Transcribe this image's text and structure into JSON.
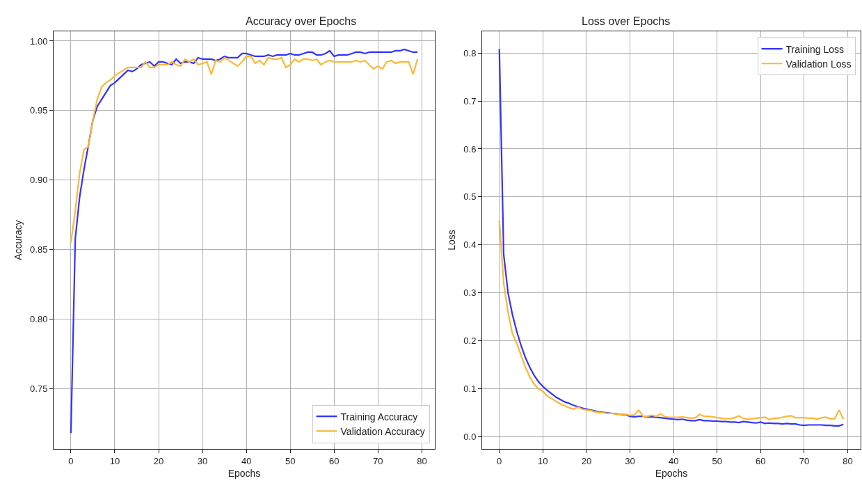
{
  "chart_data": [
    {
      "type": "line",
      "title": "Accuracy over Epochs",
      "xlabel": "Epochs",
      "ylabel": "Accuracy",
      "x": [
        0,
        1,
        2,
        3,
        4,
        5,
        6,
        7,
        8,
        9,
        10,
        11,
        12,
        13,
        14,
        15,
        16,
        17,
        18,
        19,
        20,
        21,
        22,
        23,
        24,
        25,
        26,
        27,
        28,
        29,
        30,
        31,
        32,
        33,
        34,
        35,
        36,
        37,
        38,
        39,
        40,
        41,
        42,
        43,
        44,
        45,
        46,
        47,
        48,
        49,
        50,
        51,
        52,
        53,
        54,
        55,
        56,
        57,
        58,
        59,
        60,
        61,
        62,
        63,
        64,
        65,
        66,
        67,
        68,
        69,
        70,
        71,
        72,
        73,
        74,
        75,
        76,
        77,
        78,
        79
      ],
      "series": [
        {
          "name": "Training Accuracy",
          "color": "#3333ff",
          "values": [
            0.718,
            0.858,
            0.888,
            0.908,
            0.925,
            0.943,
            0.953,
            0.958,
            0.963,
            0.968,
            0.97,
            0.973,
            0.976,
            0.979,
            0.978,
            0.98,
            0.983,
            0.984,
            0.985,
            0.982,
            0.985,
            0.985,
            0.984,
            0.983,
            0.987,
            0.984,
            0.985,
            0.985,
            0.984,
            0.988,
            0.987,
            0.987,
            0.987,
            0.986,
            0.987,
            0.989,
            0.988,
            0.988,
            0.988,
            0.991,
            0.991,
            0.99,
            0.989,
            0.989,
            0.989,
            0.99,
            0.989,
            0.99,
            0.99,
            0.99,
            0.991,
            0.99,
            0.99,
            0.991,
            0.992,
            0.992,
            0.99,
            0.99,
            0.991,
            0.993,
            0.989,
            0.99,
            0.99,
            0.99,
            0.991,
            0.992,
            0.992,
            0.991,
            0.992,
            0.992,
            0.992,
            0.992,
            0.992,
            0.992,
            0.993,
            0.993,
            0.994,
            0.993,
            0.992,
            0.992
          ]
        },
        {
          "name": "Validation Accuracy",
          "color": "#ffb733",
          "values": [
            0.855,
            0.878,
            0.905,
            0.922,
            0.924,
            0.943,
            0.958,
            0.967,
            0.97,
            0.972,
            0.975,
            0.977,
            0.979,
            0.981,
            0.981,
            0.981,
            0.981,
            0.985,
            0.981,
            0.981,
            0.983,
            0.983,
            0.983,
            0.985,
            0.983,
            0.982,
            0.987,
            0.985,
            0.987,
            0.983,
            0.984,
            0.985,
            0.976,
            0.986,
            0.985,
            0.988,
            0.986,
            0.984,
            0.982,
            0.985,
            0.989,
            0.989,
            0.984,
            0.986,
            0.983,
            0.988,
            0.987,
            0.987,
            0.988,
            0.981,
            0.983,
            0.987,
            0.985,
            0.987,
            0.987,
            0.986,
            0.987,
            0.983,
            0.985,
            0.986,
            0.985,
            0.985,
            0.985,
            0.985,
            0.985,
            0.986,
            0.985,
            0.986,
            0.983,
            0.98,
            0.982,
            0.98,
            0.985,
            0.986,
            0.984,
            0.985,
            0.985,
            0.985,
            0.976,
            0.987
          ]
        }
      ],
      "xlim": [
        -3.95,
        82.95
      ],
      "xticks": [
        0,
        10,
        20,
        30,
        40,
        50,
        60,
        70,
        80
      ],
      "ylim": [
        0.7066,
        1.007
      ],
      "yticks": [
        {
          "value": 0.75,
          "label": "0.75"
        },
        {
          "value": 0.8,
          "label": "0.80"
        },
        {
          "value": 0.85,
          "label": "0.85"
        },
        {
          "value": 0.9,
          "label": "0.90"
        },
        {
          "value": 0.95,
          "label": "0.95"
        },
        {
          "value": 1.0,
          "label": "1.00"
        }
      ],
      "grid": true,
      "legend": "bottom right",
      "line_style": "solid"
    },
    {
      "type": "line",
      "title": "Loss over Epochs",
      "xlabel": "Epochs",
      "ylabel": "Loss",
      "x": [
        0,
        1,
        2,
        3,
        4,
        5,
        6,
        7,
        8,
        9,
        10,
        11,
        12,
        13,
        14,
        15,
        16,
        17,
        18,
        19,
        20,
        21,
        22,
        23,
        24,
        25,
        26,
        27,
        28,
        29,
        30,
        31,
        32,
        33,
        34,
        35,
        36,
        37,
        38,
        39,
        40,
        41,
        42,
        43,
        44,
        45,
        46,
        47,
        48,
        49,
        50,
        51,
        52,
        53,
        54,
        55,
        56,
        57,
        58,
        59,
        60,
        61,
        62,
        63,
        64,
        65,
        66,
        67,
        68,
        69,
        70,
        71,
        72,
        73,
        74,
        75,
        76,
        77,
        78,
        79
      ],
      "series": [
        {
          "name": "Training Loss",
          "color": "#3333ff",
          "values": [
            0.808,
            0.38,
            0.3,
            0.255,
            0.22,
            0.19,
            0.165,
            0.145,
            0.128,
            0.115,
            0.105,
            0.097,
            0.09,
            0.083,
            0.078,
            0.073,
            0.07,
            0.066,
            0.063,
            0.06,
            0.058,
            0.056,
            0.054,
            0.052,
            0.051,
            0.05,
            0.049,
            0.048,
            0.047,
            0.046,
            0.043,
            0.042,
            0.043,
            0.043,
            0.042,
            0.042,
            0.041,
            0.04,
            0.039,
            0.038,
            0.037,
            0.036,
            0.037,
            0.035,
            0.034,
            0.034,
            0.036,
            0.034,
            0.034,
            0.033,
            0.033,
            0.032,
            0.032,
            0.031,
            0.031,
            0.03,
            0.032,
            0.031,
            0.03,
            0.029,
            0.031,
            0.028,
            0.029,
            0.028,
            0.028,
            0.027,
            0.028,
            0.027,
            0.027,
            0.025,
            0.024,
            0.025,
            0.025,
            0.025,
            0.025,
            0.024,
            0.024,
            0.023,
            0.023,
            0.026
          ]
        },
        {
          "name": "Validation Loss",
          "color": "#ffb733",
          "values": [
            0.45,
            0.32,
            0.26,
            0.215,
            0.195,
            0.17,
            0.145,
            0.125,
            0.11,
            0.1,
            0.095,
            0.085,
            0.08,
            0.074,
            0.069,
            0.065,
            0.061,
            0.058,
            0.062,
            0.058,
            0.056,
            0.055,
            0.052,
            0.051,
            0.05,
            0.049,
            0.049,
            0.047,
            0.048,
            0.047,
            0.045,
            0.046,
            0.056,
            0.043,
            0.043,
            0.045,
            0.043,
            0.048,
            0.042,
            0.041,
            0.041,
            0.041,
            0.042,
            0.04,
            0.039,
            0.04,
            0.047,
            0.043,
            0.043,
            0.042,
            0.04,
            0.039,
            0.038,
            0.038,
            0.04,
            0.044,
            0.038,
            0.037,
            0.038,
            0.039,
            0.04,
            0.041,
            0.036,
            0.039,
            0.039,
            0.041,
            0.043,
            0.044,
            0.04,
            0.04,
            0.04,
            0.039,
            0.039,
            0.037,
            0.04,
            0.041,
            0.038,
            0.038,
            0.056,
            0.037
          ]
        }
      ],
      "xlim": [
        -3.95,
        82.95
      ],
      "xticks": [
        0,
        10,
        20,
        30,
        40,
        50,
        60,
        70,
        80
      ],
      "ylim": [
        -0.025,
        0.845
      ],
      "yticks": [
        {
          "value": 0,
          "label": "0.0"
        },
        0.1,
        0.2,
        0.3,
        0.4,
        0.5,
        0.6,
        0.7,
        0.8
      ],
      "grid": true,
      "legend": "top right",
      "line_style": "solid"
    }
  ]
}
